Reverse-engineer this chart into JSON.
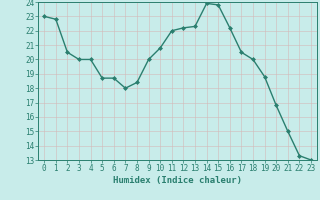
{
  "x": [
    0,
    1,
    2,
    3,
    4,
    5,
    6,
    7,
    8,
    9,
    10,
    11,
    12,
    13,
    14,
    15,
    16,
    17,
    18,
    19,
    20,
    21,
    22,
    23
  ],
  "y": [
    23.0,
    22.8,
    20.5,
    20.0,
    20.0,
    18.7,
    18.7,
    18.0,
    18.4,
    20.0,
    20.8,
    22.0,
    22.2,
    22.3,
    23.9,
    23.8,
    22.2,
    20.5,
    20.0,
    18.8,
    16.8,
    15.0,
    13.3,
    13.0
  ],
  "line_color": "#2a7f6f",
  "bg_color": "#c8ecea",
  "grid_color": "#c0d8d6",
  "xlabel": "Humidex (Indice chaleur)",
  "ylim": [
    13,
    24
  ],
  "xlim": [
    -0.5,
    23.5
  ],
  "yticks": [
    13,
    14,
    15,
    16,
    17,
    18,
    19,
    20,
    21,
    22,
    23,
    24
  ],
  "xticks": [
    0,
    1,
    2,
    3,
    4,
    5,
    6,
    7,
    8,
    9,
    10,
    11,
    12,
    13,
    14,
    15,
    16,
    17,
    18,
    19,
    20,
    21,
    22,
    23
  ],
  "marker": "D",
  "marker_size": 2.0,
  "line_width": 1.0,
  "xlabel_fontsize": 6.5,
  "tick_fontsize": 5.5,
  "tick_color": "#2a7f6f",
  "label_color": "#2a7f6f",
  "spine_color": "#2a7f6f"
}
